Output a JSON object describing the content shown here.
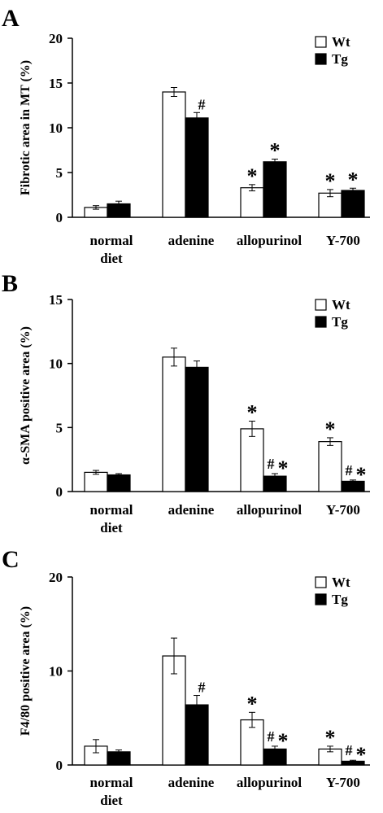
{
  "chart_data": [
    {
      "panel": "A",
      "type": "bar",
      "ylabel": "Fibrotic area in MT (%)",
      "ylim": [
        0,
        20
      ],
      "yticks": [
        "0",
        "5",
        "10",
        "15",
        "20"
      ],
      "categories": [
        "normal|diet",
        "adenine",
        "allopurinol",
        "Y-700"
      ],
      "series": [
        {
          "name": "Wt",
          "color": "#ffffff",
          "values": [
            1.1,
            14.0,
            3.3,
            2.7
          ],
          "errors": [
            0.2,
            0.5,
            0.35,
            0.4
          ]
        },
        {
          "name": "Tg",
          "color": "#000000",
          "values": [
            1.5,
            11.1,
            6.2,
            3.0
          ],
          "errors": [
            0.3,
            0.6,
            0.3,
            0.25
          ]
        }
      ],
      "annotations": [
        {
          "category": 1,
          "series": 1,
          "text": "#"
        },
        {
          "category": 2,
          "series": 0,
          "text": "*"
        },
        {
          "category": 2,
          "series": 1,
          "text": "*"
        },
        {
          "category": 3,
          "series": 0,
          "text": "*"
        },
        {
          "category": 3,
          "series": 1,
          "text": "*"
        }
      ],
      "legend": "top-right"
    },
    {
      "panel": "B",
      "type": "bar",
      "ylabel": "α-SMA positive area (%)",
      "ylim": [
        0,
        15
      ],
      "yticks": [
        "0",
        "5",
        "10",
        "15"
      ],
      "categories": [
        "normal|diet",
        "adenine",
        "allopurinol",
        "Y-700"
      ],
      "series": [
        {
          "name": "Wt",
          "color": "#ffffff",
          "values": [
            1.5,
            10.5,
            4.9,
            3.9
          ],
          "errors": [
            0.15,
            0.7,
            0.6,
            0.3
          ]
        },
        {
          "name": "Tg",
          "color": "#000000",
          "values": [
            1.3,
            9.7,
            1.2,
            0.8
          ],
          "errors": [
            0.1,
            0.5,
            0.2,
            0.1
          ]
        }
      ],
      "annotations": [
        {
          "category": 2,
          "series": 0,
          "text": "*"
        },
        {
          "category": 2,
          "series": 1,
          "text": "# *"
        },
        {
          "category": 3,
          "series": 0,
          "text": "*"
        },
        {
          "category": 3,
          "series": 1,
          "text": "# *"
        }
      ],
      "legend": "top-right"
    },
    {
      "panel": "C",
      "type": "bar",
      "ylabel": "F4/80 positive area (%)",
      "ylim": [
        0,
        20
      ],
      "yticks": [
        "0",
        "10",
        "20"
      ],
      "categories": [
        "normal|diet",
        "adenine",
        "allopurinol",
        "Y-700"
      ],
      "series": [
        {
          "name": "Wt",
          "color": "#ffffff",
          "values": [
            2.0,
            11.6,
            4.8,
            1.7
          ],
          "errors": [
            0.7,
            1.9,
            0.8,
            0.3
          ]
        },
        {
          "name": "Tg",
          "color": "#000000",
          "values": [
            1.4,
            6.4,
            1.7,
            0.4
          ],
          "errors": [
            0.2,
            1.0,
            0.3,
            0.1
          ]
        }
      ],
      "annotations": [
        {
          "category": 1,
          "series": 1,
          "text": "#"
        },
        {
          "category": 2,
          "series": 0,
          "text": "*"
        },
        {
          "category": 2,
          "series": 1,
          "text": "# *"
        },
        {
          "category": 3,
          "series": 0,
          "text": "*"
        },
        {
          "category": 3,
          "series": 1,
          "text": "# *"
        }
      ],
      "legend": "top-right"
    }
  ]
}
